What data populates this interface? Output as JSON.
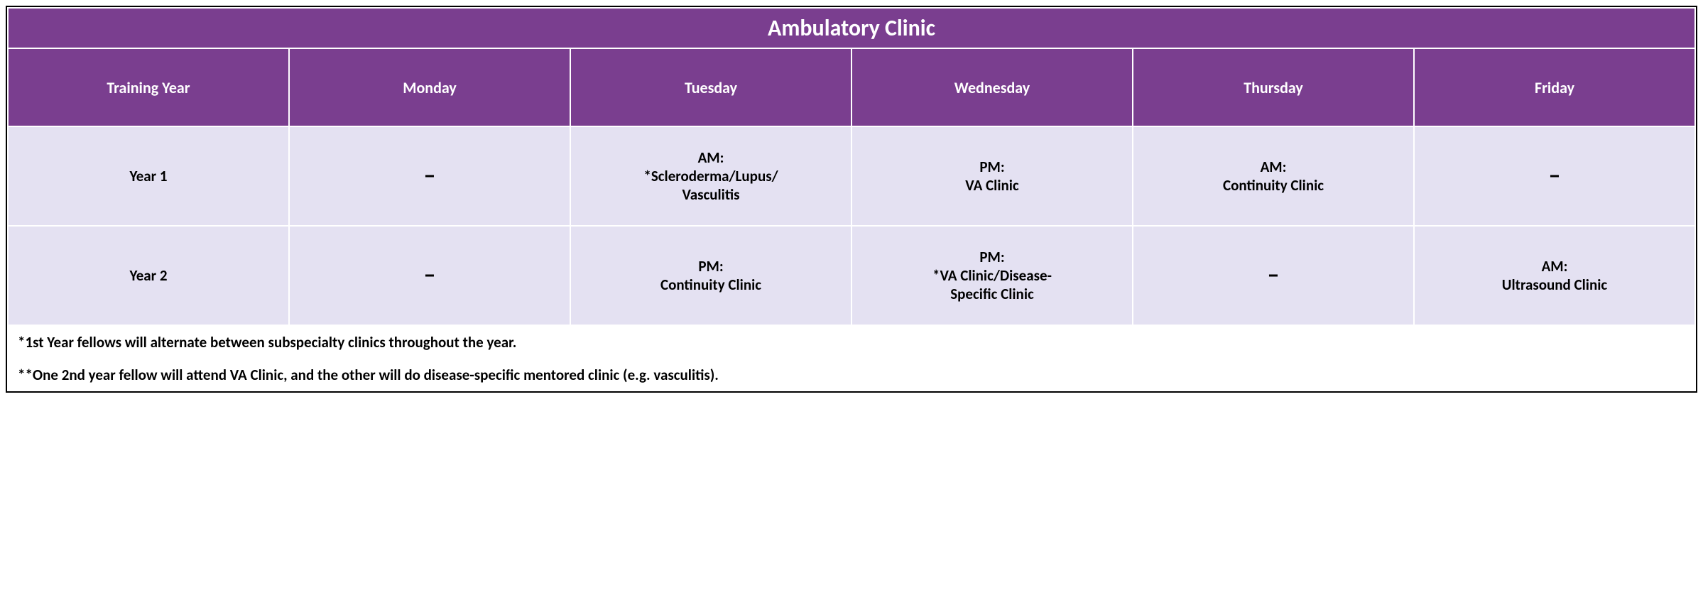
{
  "colors": {
    "header_bg": "#7a3e8f",
    "header_fg": "#ffffff",
    "body_bg": "#e4e1f2",
    "body_fg": "#000000",
    "border": "#ffffff",
    "outer_border": "#000000"
  },
  "table": {
    "title": "Ambulatory Clinic",
    "columns": [
      "Training Year",
      "Monday",
      "Tuesday",
      "Wednesday",
      "Thursday",
      "Friday"
    ],
    "rows": [
      {
        "label": "Year 1",
        "cells": {
          "monday": "–",
          "tuesday": "AM:\n*Scleroderma/Lupus/\nVasculitis",
          "wednesday": "PM:\nVA Clinic",
          "thursday": "AM:\nContinuity Clinic",
          "friday": "–"
        }
      },
      {
        "label": "Year 2",
        "cells": {
          "monday": "–",
          "tuesday": "PM:\nContinuity Clinic",
          "wednesday": "PM:\n*VA Clinic/Disease-\nSpecific Clinic",
          "thursday": "–",
          "friday": "AM:\nUltrasound Clinic"
        }
      }
    ],
    "footnotes": [
      "*1st Year fellows will alternate between subspecialty clinics throughout the year.",
      "**One 2nd year fellow will attend VA Clinic, and the other will do disease-specific mentored clinic (e.g. vasculitis)."
    ]
  },
  "typography": {
    "title_fontsize": 32,
    "header_fontsize": 22,
    "body_fontsize": 21,
    "footnote_fontsize": 21,
    "font_family": "Calibri"
  }
}
